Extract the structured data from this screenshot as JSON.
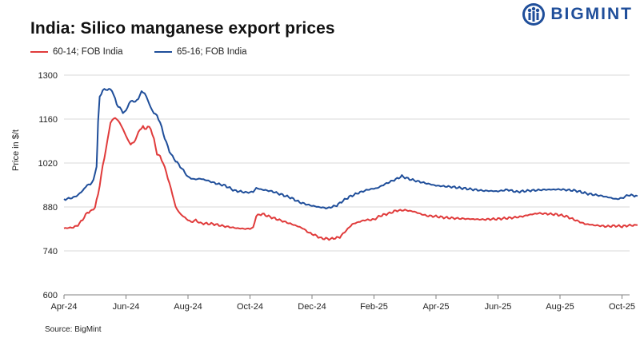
{
  "chart_data": {
    "type": "line",
    "title": "India: Silico manganese export prices",
    "xlabel": "",
    "ylabel": "Price in $/t",
    "ylim": [
      600,
      1300
    ],
    "yticks": [
      600,
      740,
      880,
      1020,
      1160,
      1300
    ],
    "grid": true,
    "legend_position": "top-left",
    "x_tick_labels": [
      "Apr-24",
      "Jun-24",
      "Aug-24",
      "Oct-24",
      "Dec-24",
      "Feb-25",
      "Apr-25",
      "Jun-25",
      "Aug-25",
      "Oct-25"
    ],
    "x_range_months": [
      0,
      18.5
    ],
    "series": [
      {
        "name": "60-14; FOB India",
        "color": "#e03b3b",
        "points": [
          [
            0,
            812
          ],
          [
            0.3,
            815
          ],
          [
            0.45,
            822
          ],
          [
            0.6,
            840
          ],
          [
            0.75,
            862
          ],
          [
            0.9,
            868
          ],
          [
            1.0,
            880
          ],
          [
            1.1,
            920
          ],
          [
            1.25,
            1010
          ],
          [
            1.4,
            1090
          ],
          [
            1.5,
            1150
          ],
          [
            1.65,
            1165
          ],
          [
            1.8,
            1148
          ],
          [
            1.95,
            1118
          ],
          [
            2.05,
            1095
          ],
          [
            2.15,
            1080
          ],
          [
            2.25,
            1085
          ],
          [
            2.35,
            1105
          ],
          [
            2.45,
            1128
          ],
          [
            2.55,
            1135
          ],
          [
            2.6,
            1128
          ],
          [
            2.7,
            1135
          ],
          [
            2.8,
            1130
          ],
          [
            2.9,
            1095
          ],
          [
            3.0,
            1050
          ],
          [
            3.1,
            1040
          ],
          [
            3.2,
            1020
          ],
          [
            3.3,
            990
          ],
          [
            3.4,
            955
          ],
          [
            3.5,
            920
          ],
          [
            3.6,
            880
          ],
          [
            3.75,
            858
          ],
          [
            3.95,
            842
          ],
          [
            4.1,
            832
          ],
          [
            4.25,
            838
          ],
          [
            4.4,
            828
          ],
          [
            4.8,
            826
          ],
          [
            5.2,
            818
          ],
          [
            5.6,
            812
          ],
          [
            5.9,
            810
          ],
          [
            6.1,
            813
          ],
          [
            6.2,
            852
          ],
          [
            6.4,
            858
          ],
          [
            6.6,
            850
          ],
          [
            6.9,
            840
          ],
          [
            7.2,
            830
          ],
          [
            7.5,
            820
          ],
          [
            7.7,
            812
          ],
          [
            7.9,
            798
          ],
          [
            8.1,
            790
          ],
          [
            8.3,
            780
          ],
          [
            8.6,
            778
          ],
          [
            8.9,
            784
          ],
          [
            9.1,
            805
          ],
          [
            9.3,
            825
          ],
          [
            9.5,
            832
          ],
          [
            9.7,
            838
          ],
          [
            10.0,
            840
          ],
          [
            10.2,
            852
          ],
          [
            10.5,
            860
          ],
          [
            10.7,
            868
          ],
          [
            11.0,
            870
          ],
          [
            11.3,
            865
          ],
          [
            11.5,
            858
          ],
          [
            11.7,
            852
          ],
          [
            12.0,
            850
          ],
          [
            12.3,
            846
          ],
          [
            12.6,
            844
          ],
          [
            13.0,
            842
          ],
          [
            13.5,
            840
          ],
          [
            14.0,
            842
          ],
          [
            14.5,
            846
          ],
          [
            14.8,
            850
          ],
          [
            15.0,
            855
          ],
          [
            15.3,
            860
          ],
          [
            15.6,
            858
          ],
          [
            15.9,
            856
          ],
          [
            16.2,
            850
          ],
          [
            16.5,
            838
          ],
          [
            16.8,
            826
          ],
          [
            17.1,
            822
          ],
          [
            17.5,
            818
          ],
          [
            17.8,
            820
          ],
          [
            18.0,
            818
          ],
          [
            18.2,
            821
          ],
          [
            18.5,
            822
          ]
        ]
      },
      {
        "name": "65-16; FOB India",
        "color": "#1f4e9a",
        "points": [
          [
            0,
            904
          ],
          [
            0.3,
            910
          ],
          [
            0.45,
            918
          ],
          [
            0.6,
            932
          ],
          [
            0.75,
            950
          ],
          [
            0.85,
            952
          ],
          [
            0.95,
            965
          ],
          [
            1.05,
            1010
          ],
          [
            1.1,
            1150
          ],
          [
            1.15,
            1230
          ],
          [
            1.25,
            1252
          ],
          [
            1.4,
            1255
          ],
          [
            1.55,
            1252
          ],
          [
            1.7,
            1208
          ],
          [
            1.8,
            1195
          ],
          [
            1.9,
            1182
          ],
          [
            2.0,
            1185
          ],
          [
            2.1,
            1212
          ],
          [
            2.2,
            1218
          ],
          [
            2.3,
            1215
          ],
          [
            2.4,
            1225
          ],
          [
            2.5,
            1248
          ],
          [
            2.6,
            1242
          ],
          [
            2.7,
            1222
          ],
          [
            2.8,
            1195
          ],
          [
            2.9,
            1180
          ],
          [
            3.0,
            1170
          ],
          [
            3.1,
            1150
          ],
          [
            3.2,
            1115
          ],
          [
            3.3,
            1085
          ],
          [
            3.4,
            1058
          ],
          [
            3.5,
            1040
          ],
          [
            3.7,
            1015
          ],
          [
            3.9,
            990
          ],
          [
            4.0,
            975
          ],
          [
            4.2,
            968
          ],
          [
            4.4,
            970
          ],
          [
            4.6,
            965
          ],
          [
            4.9,
            955
          ],
          [
            5.2,
            948
          ],
          [
            5.5,
            932
          ],
          [
            5.9,
            926
          ],
          [
            6.1,
            928
          ],
          [
            6.2,
            940
          ],
          [
            6.4,
            935
          ],
          [
            6.7,
            930
          ],
          [
            7.0,
            920
          ],
          [
            7.3,
            910
          ],
          [
            7.6,
            895
          ],
          [
            7.9,
            886
          ],
          [
            8.2,
            880
          ],
          [
            8.5,
            876
          ],
          [
            8.8,
            885
          ],
          [
            9.0,
            900
          ],
          [
            9.2,
            912
          ],
          [
            9.5,
            925
          ],
          [
            9.8,
            935
          ],
          [
            10.1,
            940
          ],
          [
            10.4,
            955
          ],
          [
            10.7,
            968
          ],
          [
            10.9,
            978
          ],
          [
            11.1,
            970
          ],
          [
            11.4,
            962
          ],
          [
            11.7,
            955
          ],
          [
            12.0,
            948
          ],
          [
            12.5,
            944
          ],
          [
            13.0,
            938
          ],
          [
            13.5,
            932
          ],
          [
            14.0,
            930
          ],
          [
            14.3,
            935
          ],
          [
            14.6,
            928
          ],
          [
            15.0,
            932
          ],
          [
            15.5,
            935
          ],
          [
            16.0,
            936
          ],
          [
            16.5,
            932
          ],
          [
            16.9,
            922
          ],
          [
            17.3,
            916
          ],
          [
            17.6,
            910
          ],
          [
            17.8,
            905
          ],
          [
            18.0,
            908
          ],
          [
            18.2,
            918
          ],
          [
            18.5,
            915
          ]
        ]
      }
    ]
  },
  "legend": {
    "series_1": "60-14; FOB India",
    "series_2": "65-16; FOB India"
  },
  "logo": {
    "text": "BIGMINT"
  },
  "source": "Source: BigMint",
  "colors": {
    "red": "#e03b3b",
    "blue": "#1f4e9a",
    "grid": "#d9d9d9",
    "axis": "#808080"
  }
}
